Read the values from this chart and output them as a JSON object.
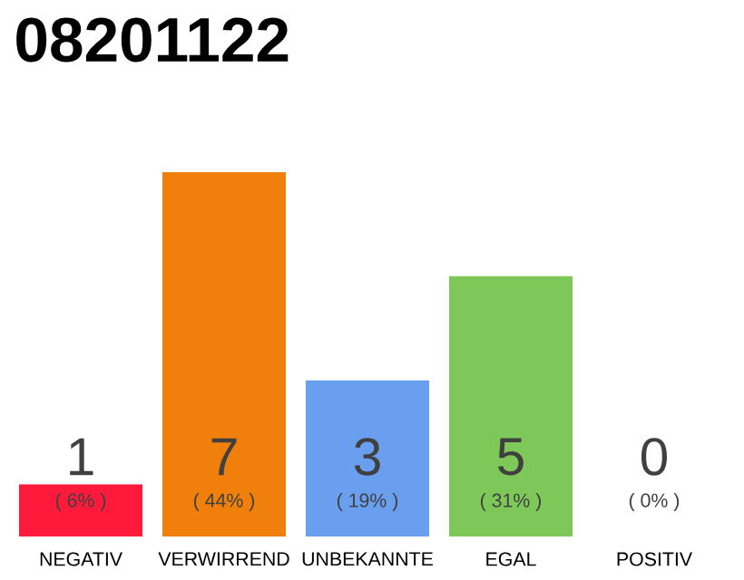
{
  "chart_data": {
    "type": "bar",
    "title": "08201122",
    "categories": [
      "NEGATIV",
      "VERWIRREND",
      "UNBEKANNTE",
      "EGAL",
      "POSITIV"
    ],
    "values": [
      1,
      7,
      3,
      5,
      0
    ],
    "colors": [
      "#ff1a3c",
      "#f07f0c",
      "#6a9ff0",
      "#7ec85a",
      "#bbbbbb"
    ],
    "value_labels": [
      "1",
      "7",
      "3",
      "5",
      "0"
    ],
    "annotations": [
      "( 6% )",
      "( 44% )",
      "( 19% )",
      "( 31% )",
      "( 0% )"
    ]
  }
}
